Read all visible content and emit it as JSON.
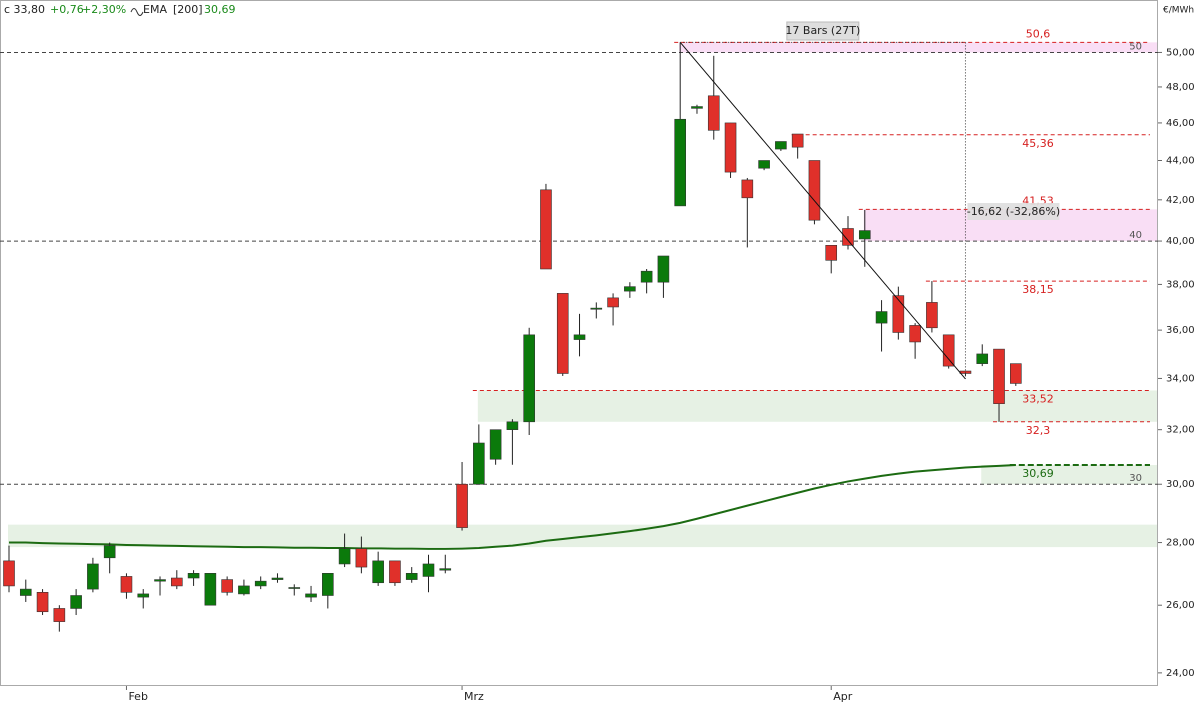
{
  "chart_data": {
    "type": "candlestick",
    "header": {
      "close": "c 33,80",
      "change": "+0,76",
      "change_pct": "+2,30%",
      "ema_period": "[200]",
      "ema_value": "30,69"
    },
    "unit": "€/MWh",
    "categories": [
      null,
      null,
      null,
      null,
      null,
      null,
      null,
      "Feb",
      null,
      null,
      null,
      null,
      null,
      null,
      null,
      null,
      null,
      null,
      null,
      null,
      null,
      null,
      null,
      null,
      null,
      null,
      null,
      "Mrz",
      null,
      null,
      null,
      null,
      null,
      null,
      null,
      null,
      null,
      null,
      null,
      null,
      null,
      null,
      null,
      null,
      null,
      null,
      null,
      null,
      null,
      "Apr",
      null,
      null,
      null,
      null,
      null,
      null,
      null,
      null,
      null,
      null,
      null
    ],
    "open": [
      27.4,
      26.3,
      26.4,
      25.9,
      25.9,
      26.5,
      27.5,
      26.9,
      26.25,
      26.75,
      26.85,
      26.85,
      26.0,
      26.8,
      26.35,
      26.6,
      26.8,
      26.55,
      26.25,
      26.3,
      27.3,
      27.8,
      26.7,
      27.4,
      26.8,
      26.9,
      27.1,
      30.0,
      30.0,
      30.9,
      32.0,
      32.3,
      42.5,
      37.6,
      35.6,
      36.9,
      37.4,
      37.7,
      38.1,
      38.1,
      41.7,
      46.8,
      47.5,
      46.0,
      43.0,
      43.6,
      44.6,
      45.4,
      44.0,
      39.8,
      40.6,
      40.1,
      36.3,
      37.5,
      36.2,
      37.2,
      35.8,
      34.3,
      34.6,
      35.2,
      34.6
    ],
    "high": [
      27.9,
      26.8,
      26.5,
      26.0,
      26.5,
      27.5,
      28.0,
      27.0,
      26.5,
      26.9,
      27.1,
      27.1,
      27.0,
      26.9,
      26.8,
      26.9,
      27.0,
      26.65,
      26.6,
      27.0,
      28.3,
      28.2,
      27.7,
      27.4,
      27.2,
      27.6,
      27.6,
      30.8,
      32.2,
      32.0,
      32.4,
      36.1,
      42.8,
      37.6,
      36.7,
      37.2,
      37.6,
      38.1,
      38.7,
      39.3,
      50.6,
      47.0,
      49.8,
      46.0,
      43.1,
      44.0,
      45.0,
      45.4,
      44.0,
      39.8,
      41.2,
      41.5,
      37.3,
      37.9,
      36.3,
      38.15,
      35.8,
      34.3,
      35.4,
      35.2,
      34.6
    ],
    "low": [
      26.4,
      26.1,
      25.7,
      25.2,
      25.7,
      26.4,
      27.0,
      26.2,
      25.9,
      26.3,
      26.5,
      26.6,
      26.0,
      26.3,
      26.3,
      26.5,
      26.7,
      26.3,
      26.1,
      25.9,
      27.2,
      27.0,
      26.6,
      26.6,
      26.7,
      26.4,
      27.0,
      28.4,
      30.0,
      30.7,
      30.7,
      31.8,
      38.7,
      34.1,
      34.9,
      36.5,
      36.2,
      37.4,
      37.6,
      37.4,
      41.7,
      46.5,
      45.1,
      43.1,
      39.7,
      43.5,
      44.5,
      44.1,
      40.8,
      38.5,
      39.6,
      38.8,
      35.1,
      35.6,
      34.8,
      35.9,
      34.4,
      34.1,
      34.5,
      32.3,
      33.7
    ],
    "close": [
      26.6,
      26.5,
      25.8,
      25.5,
      26.3,
      27.3,
      27.9,
      26.4,
      26.35,
      26.8,
      26.6,
      27.0,
      27.0,
      26.4,
      26.6,
      26.75,
      26.85,
      26.55,
      26.35,
      27.0,
      27.8,
      27.2,
      27.4,
      26.7,
      27.0,
      27.3,
      27.15,
      28.5,
      31.5,
      32.0,
      32.3,
      35.8,
      38.7,
      34.2,
      35.8,
      36.95,
      37.0,
      37.9,
      38.6,
      39.3,
      46.2,
      46.9,
      45.6,
      43.4,
      42.1,
      44.0,
      45.0,
      44.7,
      41.0,
      39.1,
      39.8,
      40.5,
      36.8,
      35.9,
      35.5,
      36.1,
      34.5,
      34.2,
      35.0,
      33.0,
      33.8
    ],
    "up_color": "#0b7a0b",
    "down_color": "#e0302a",
    "ema": {
      "name": "EMA",
      "color": "#1c6b12",
      "values": [
        28.0,
        28.0,
        27.98,
        27.97,
        27.96,
        27.95,
        27.94,
        27.92,
        27.91,
        27.9,
        27.89,
        27.88,
        27.87,
        27.86,
        27.85,
        27.85,
        27.84,
        27.83,
        27.83,
        27.82,
        27.82,
        27.81,
        27.81,
        27.8,
        27.8,
        27.79,
        27.79,
        27.8,
        27.82,
        27.86,
        27.9,
        27.97,
        28.06,
        28.12,
        28.18,
        28.24,
        28.31,
        28.38,
        28.46,
        28.55,
        28.66,
        28.8,
        28.95,
        29.1,
        29.25,
        29.4,
        29.55,
        29.7,
        29.85,
        29.98,
        30.1,
        30.2,
        30.3,
        30.38,
        30.45,
        30.5,
        30.55,
        30.6,
        30.63,
        30.66,
        30.69
      ]
    },
    "log_scale": true,
    "ylim": [
      23.63,
      53.2
    ],
    "yticks": [
      {
        "value": 24,
        "label": "24,00"
      },
      {
        "value": 26,
        "label": "26,00"
      },
      {
        "value": 28,
        "label": "28,00"
      },
      {
        "value": 30,
        "label": "30,00"
      },
      {
        "value": 32,
        "label": "32,00"
      },
      {
        "value": 34,
        "label": "34,00"
      },
      {
        "value": 36,
        "label": "36,00"
      },
      {
        "value": 38,
        "label": "38,00"
      },
      {
        "value": 40,
        "label": "40,00"
      },
      {
        "value": 42,
        "label": "42,00"
      },
      {
        "value": 44,
        "label": "44,00"
      },
      {
        "value": 46,
        "label": "46,00"
      },
      {
        "value": 48,
        "label": "48,00"
      },
      {
        "value": 50,
        "label": "50,00"
      }
    ],
    "round_levels": [
      50,
      40,
      30
    ],
    "levels": [
      {
        "value": 50.6,
        "label": "50,6",
        "start": 40,
        "color": "#d62020",
        "label_position": "above"
      },
      {
        "value": 45.36,
        "label": "45,36",
        "start": 47,
        "color": "#d62020",
        "label_position": "below"
      },
      {
        "value": 41.53,
        "label": "41,53",
        "start": 51,
        "color": "#d62020",
        "label_position": "above"
      },
      {
        "value": 38.15,
        "label": "38,15",
        "start": 55,
        "color": "#d62020",
        "label_position": "below"
      },
      {
        "value": 33.52,
        "label": "33,52",
        "start": 28,
        "color": "#d62020",
        "label_position": "below"
      },
      {
        "value": 32.3,
        "label": "32,3",
        "start": 59,
        "color": "#d62020",
        "label_position": "below"
      },
      {
        "value": 30.69,
        "label": "30,69",
        "start": 60,
        "color": "#1c6b12",
        "label_position": "below"
      }
    ],
    "zones": [
      {
        "from": 50,
        "to": 50.6,
        "start": 40,
        "color": "#f8d8f3"
      },
      {
        "from": 40,
        "to": 41.53,
        "start": 51,
        "color": "#f8d8f3"
      },
      {
        "from": 32.3,
        "to": 33.52,
        "start": 28,
        "color": "#e2efdf"
      },
      {
        "from": 27.85,
        "to": 28.6,
        "start": 0,
        "color": "#e2efdf"
      },
      {
        "from": 30.0,
        "to": 30.69,
        "start": 58,
        "color": "#e2efdf"
      }
    ],
    "measure": {
      "start": {
        "index": 40,
        "value": 50.6
      },
      "end": {
        "index": 57,
        "value": 33.98
      },
      "bars_label": "17 Bars (27T)",
      "change_label": "-16,62 (-32,86%)"
    }
  }
}
